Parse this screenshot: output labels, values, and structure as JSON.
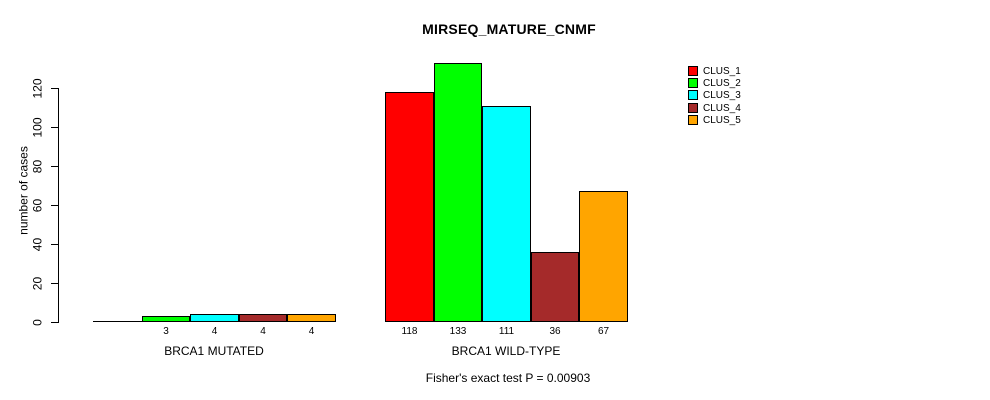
{
  "chart_data": {
    "type": "bar",
    "grouped": true,
    "title": "MIRSEQ_MATURE_CNMF",
    "ylabel": "number of cases",
    "xlabel": "",
    "categories": [
      "BRCA1 MUTATED",
      "BRCA1 WILD-TYPE"
    ],
    "series": [
      {
        "name": "CLUS_1",
        "color": "#ff0000",
        "values": [
          0,
          118
        ]
      },
      {
        "name": "CLUS_2",
        "color": "#00ff00",
        "values": [
          3,
          133
        ]
      },
      {
        "name": "CLUS_3",
        "color": "#00ffff",
        "values": [
          4,
          111
        ]
      },
      {
        "name": "CLUS_4",
        "color": "#a52a2a",
        "values": [
          4,
          36
        ]
      },
      {
        "name": "CLUS_5",
        "color": "#ffa500",
        "values": [
          4,
          67
        ]
      }
    ],
    "bar_value_labels": [
      [
        "",
        "3",
        "4",
        "4",
        "4"
      ],
      [
        "118",
        "133",
        "111",
        "36",
        "67"
      ]
    ],
    "yticks": [
      0,
      20,
      40,
      60,
      80,
      100,
      120
    ],
    "ylim": [
      0,
      133
    ],
    "grid": false,
    "legend_position": "right",
    "annotation": "Fisher's exact test P = 0.00903"
  },
  "colors": {
    "axis": "#000000",
    "background": "#ffffff"
  }
}
